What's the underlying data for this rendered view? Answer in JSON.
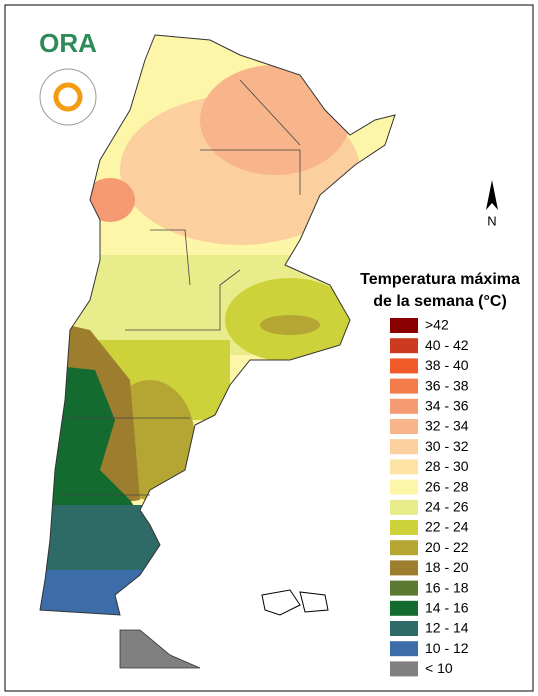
{
  "logo": {
    "text": "ORA"
  },
  "north_arrow": "N",
  "legend": {
    "title": [
      "Temperatura máxima",
      "de la semana (°C)"
    ],
    "items": [
      {
        "label": ">42",
        "color": "#8b0000"
      },
      {
        "label": "40 - 42",
        "color": "#cc3a1f"
      },
      {
        "label": "38 - 40",
        "color": "#f05a28"
      },
      {
        "label": "36 - 38",
        "color": "#f47c4a"
      },
      {
        "label": "34 - 36",
        "color": "#f59a72"
      },
      {
        "label": "32 - 34",
        "color": "#f8b58c"
      },
      {
        "label": "30 - 32",
        "color": "#fbcf9e"
      },
      {
        "label": "28 - 30",
        "color": "#fde4a6"
      },
      {
        "label": "26 - 28",
        "color": "#fdf5a8"
      },
      {
        "label": "24 - 26",
        "color": "#e9ec8a"
      },
      {
        "label": "22 - 24",
        "color": "#cdd23a"
      },
      {
        "label": "20 - 22",
        "color": "#b5a633"
      },
      {
        "label": "18 - 20",
        "color": "#9d7d2e"
      },
      {
        "label": "16 - 18",
        "color": "#5a7a32"
      },
      {
        "label": "14 - 16",
        "color": "#136b30"
      },
      {
        "label": "12 - 14",
        "color": "#2e6b67"
      },
      {
        "label": "10 - 12",
        "color": "#3c6da8"
      },
      {
        "label": "< 10",
        "color": "#808080"
      }
    ]
  }
}
